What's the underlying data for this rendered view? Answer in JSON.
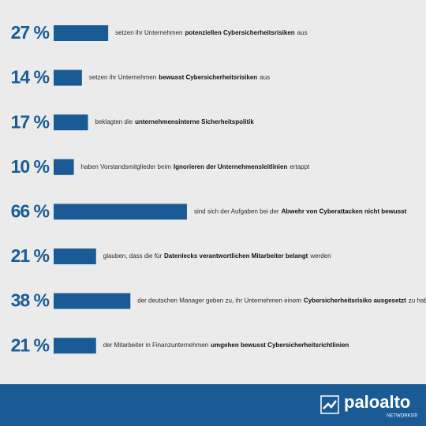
{
  "chart_data": {
    "type": "bar",
    "orientation": "horizontal",
    "color": "#1a5b96",
    "values": [
      27,
      14,
      17,
      10,
      66,
      21,
      38,
      21
    ],
    "value_labels": [
      "27 %",
      "14 %",
      "17 %",
      "10 %",
      "66 %",
      "21 %",
      "38 %",
      "21 %"
    ],
    "categories": [
      {
        "pre": "setzen ihr Unternehmen",
        "bold": "potenziellen Cybersicherheitsrisiken",
        "post": "aus"
      },
      {
        "pre": "setzen ihr Unternehmen",
        "bold": "bewusst Cybersicherheitsrisiken",
        "post": "aus"
      },
      {
        "pre": "beklagten die",
        "bold": "unternehmensinterne Sicherheitspolitik"
      },
      {
        "pre": "haben Vorstandsmitglieder beim",
        "bold": "Ignorieren der Unternehmensleitlinien",
        "post": "ertappt"
      },
      {
        "pre": "sind sich der Aufgaben bei der",
        "bold": "Abwehr von Cyberattacken nicht bewusst"
      },
      {
        "pre": "glauben, dass die für",
        "bold": "Datenlecks verantwortlichen Mitarbeiter belangt",
        "post": "werden"
      },
      {
        "pre": "der deutschen Manager geben zu, ihr Unternehmen einem",
        "bold": "Cybersicherheitsrisiko ausgesetzt",
        "post": "zu haben"
      },
      {
        "pre": "der Mitarbeiter in Finanzunternehmen",
        "bold": "umgehen bewusst Cybersicherheitsrichtlinien"
      }
    ]
  },
  "footer": {
    "brand": "paloalto",
    "sub": "NETWORKS®"
  }
}
